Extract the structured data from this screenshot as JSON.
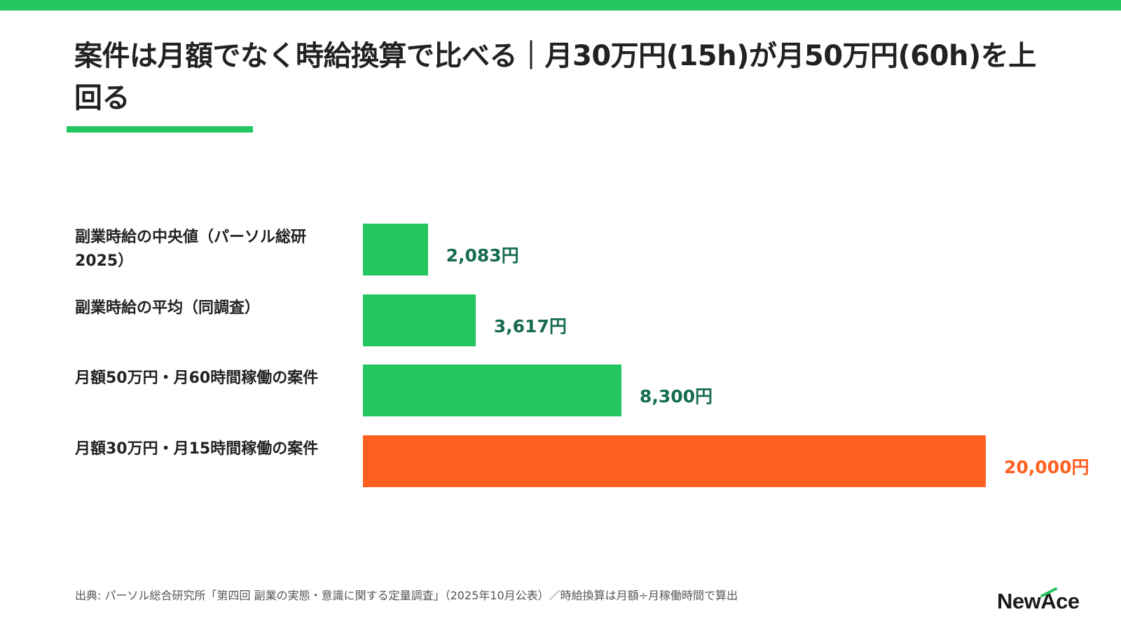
{
  "page": {
    "title": "案件は月額でなく時給換算で比べる｜月30万円(15h)が月50万円(60h)を上回る",
    "source": "出典: パーソル総合研究所「第四回 副業の実態・意識に関する定量調査」（2025年10月公表）／時給換算は月額÷月稼働時間で算出",
    "logo": {
      "prefix": "New",
      "accent": "A",
      "suffix": "ce"
    },
    "colors": {
      "accent_green": "#22c55e",
      "bar_green": "#22c55e",
      "bar_highlight": "#ff5f1f",
      "value_green": "#166b4f",
      "value_highlight": "#ff5f1f"
    }
  },
  "chart_data": {
    "type": "bar",
    "orientation": "horizontal",
    "title": "",
    "xlabel": "",
    "ylabel": "",
    "grid": false,
    "xlim": [
      0,
      20000
    ],
    "categories": [
      "副業時給の中央値（パーソル総研2025）",
      "副業時給の平均（同調査）",
      "月額50万円・月60時間稼働の案件",
      "月額30万円・月15時間稼働の案件"
    ],
    "values": [
      2083,
      3617,
      8300,
      20000
    ],
    "value_labels": [
      "2,083円",
      "3,617円",
      "8,300円",
      "20,000円"
    ],
    "highlight_index": 3
  }
}
